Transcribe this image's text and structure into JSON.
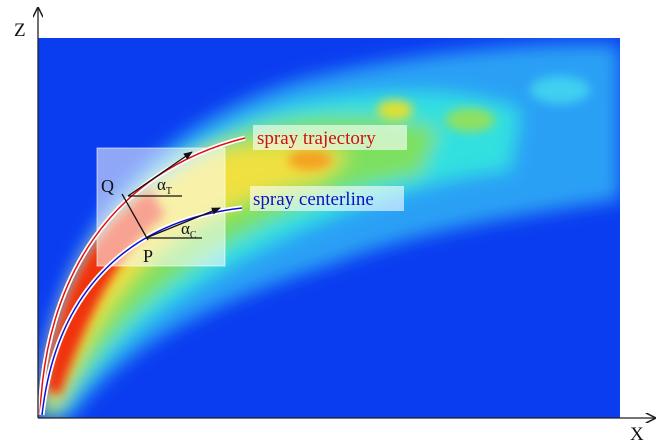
{
  "axes": {
    "vertical_label": "Z",
    "horizontal_label": "X"
  },
  "points": {
    "upper": "Q",
    "lower": "P"
  },
  "angles": {
    "trajectory": {
      "symbol": "α",
      "subscript": "T"
    },
    "centerline": {
      "symbol": "α",
      "subscript": "C"
    }
  },
  "curves": {
    "trajectory": "spray trajectory",
    "centerline": "spray centerline"
  }
}
